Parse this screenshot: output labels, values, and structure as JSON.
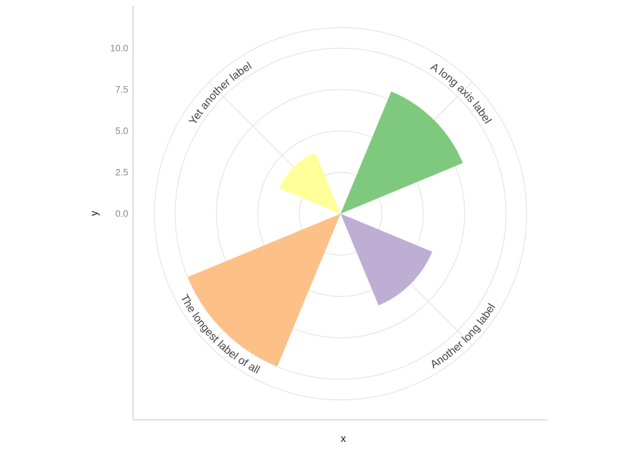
{
  "figure": {
    "background": "#ffffff",
    "title": ""
  },
  "chart_data": {
    "type": "bar",
    "coord": "polar",
    "title": "",
    "xlabel": "x",
    "ylabel": "y",
    "categories": [
      "A long axis label",
      "Another long label",
      "The longest label of all",
      "Yet another label"
    ],
    "values": [
      8,
      6,
      10,
      4
    ],
    "colors": [
      "#7FC97F",
      "#BEAED4",
      "#FDC086",
      "#FFFF99"
    ],
    "category_center_angles_deg": [
      45,
      135,
      225,
      315
    ],
    "bar_width_deg": 45,
    "r_axis": {
      "ticks": [
        0,
        2.5,
        5,
        7.5,
        10
      ],
      "tick_labels": [
        "0.0",
        "2.5",
        "5.0",
        "7.5",
        "10.0"
      ],
      "limit": [
        0,
        11.25
      ]
    },
    "grid": {
      "circle_radii_values": [
        2.5,
        5,
        7.5,
        10,
        11.25
      ],
      "spoke_angles_deg": [
        45,
        135,
        225,
        315
      ],
      "color": "#e4e4e4"
    },
    "legend_position": "none"
  },
  "style": {
    "axis_line_color": "#d5d5d5",
    "tick_label_color": "#8a8a8a",
    "category_label_color": "#454545",
    "axis_title_color": "#151515",
    "wedge_palette": {
      "green": "#7FC97F",
      "purple": "#BEAED4",
      "orange": "#FDC086",
      "yellow": "#FFFF99"
    }
  }
}
